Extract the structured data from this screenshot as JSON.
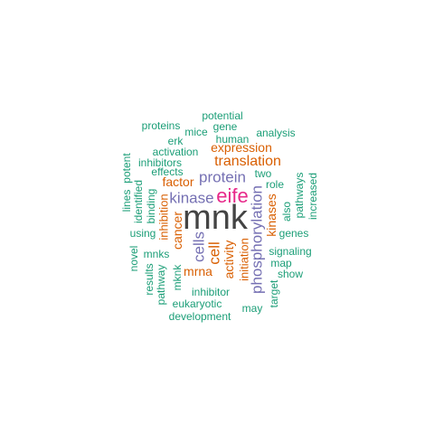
{
  "colors": {
    "teal": "#1b9e77",
    "orange": "#d95f02",
    "purple": "#7570b3",
    "magenta": "#e7298a",
    "gray": "#444444"
  },
  "words": [
    {
      "text": "mnk",
      "color": "gray"
    },
    {
      "text": "eife",
      "color": "magenta"
    },
    {
      "text": "kinase",
      "color": "purple"
    },
    {
      "text": "protein",
      "color": "purple"
    },
    {
      "text": "translation",
      "color": "orange"
    },
    {
      "text": "expression",
      "color": "orange"
    },
    {
      "text": "phosphorylation",
      "color": "purple"
    },
    {
      "text": "cells",
      "color": "purple"
    },
    {
      "text": "cell",
      "color": "orange"
    },
    {
      "text": "cancer",
      "color": "orange"
    },
    {
      "text": "factor",
      "color": "orange"
    },
    {
      "text": "activity",
      "color": "orange"
    },
    {
      "text": "kinases",
      "color": "orange"
    },
    {
      "text": "mrna",
      "color": "orange"
    },
    {
      "text": "inhibition",
      "color": "orange"
    },
    {
      "text": "initiation",
      "color": "orange"
    },
    {
      "text": "potential",
      "color": "teal"
    },
    {
      "text": "proteins",
      "color": "teal"
    },
    {
      "text": "gene",
      "color": "teal"
    },
    {
      "text": "mice",
      "color": "teal"
    },
    {
      "text": "human",
      "color": "teal"
    },
    {
      "text": "analysis",
      "color": "teal"
    },
    {
      "text": "erk",
      "color": "teal"
    },
    {
      "text": "activation",
      "color": "teal"
    },
    {
      "text": "inhibitors",
      "color": "teal"
    },
    {
      "text": "effects",
      "color": "teal"
    },
    {
      "text": "two",
      "color": "teal"
    },
    {
      "text": "role",
      "color": "teal"
    },
    {
      "text": "lines",
      "color": "teal"
    },
    {
      "text": "potent",
      "color": "teal"
    },
    {
      "text": "identified",
      "color": "teal"
    },
    {
      "text": "binding",
      "color": "teal"
    },
    {
      "text": "also",
      "color": "teal"
    },
    {
      "text": "pathways",
      "color": "teal"
    },
    {
      "text": "increased",
      "color": "teal"
    },
    {
      "text": "using",
      "color": "teal"
    },
    {
      "text": "genes",
      "color": "teal"
    },
    {
      "text": "signaling",
      "color": "teal"
    },
    {
      "text": "novel",
      "color": "teal"
    },
    {
      "text": "mnks",
      "color": "teal"
    },
    {
      "text": "map",
      "color": "teal"
    },
    {
      "text": "show",
      "color": "teal"
    },
    {
      "text": "results",
      "color": "teal"
    },
    {
      "text": "pathway",
      "color": "teal"
    },
    {
      "text": "mknk",
      "color": "teal"
    },
    {
      "text": "inhibitor",
      "color": "teal"
    },
    {
      "text": "target",
      "color": "teal"
    },
    {
      "text": "eukaryotic",
      "color": "teal"
    },
    {
      "text": "may",
      "color": "teal"
    },
    {
      "text": "development",
      "color": "teal"
    }
  ]
}
